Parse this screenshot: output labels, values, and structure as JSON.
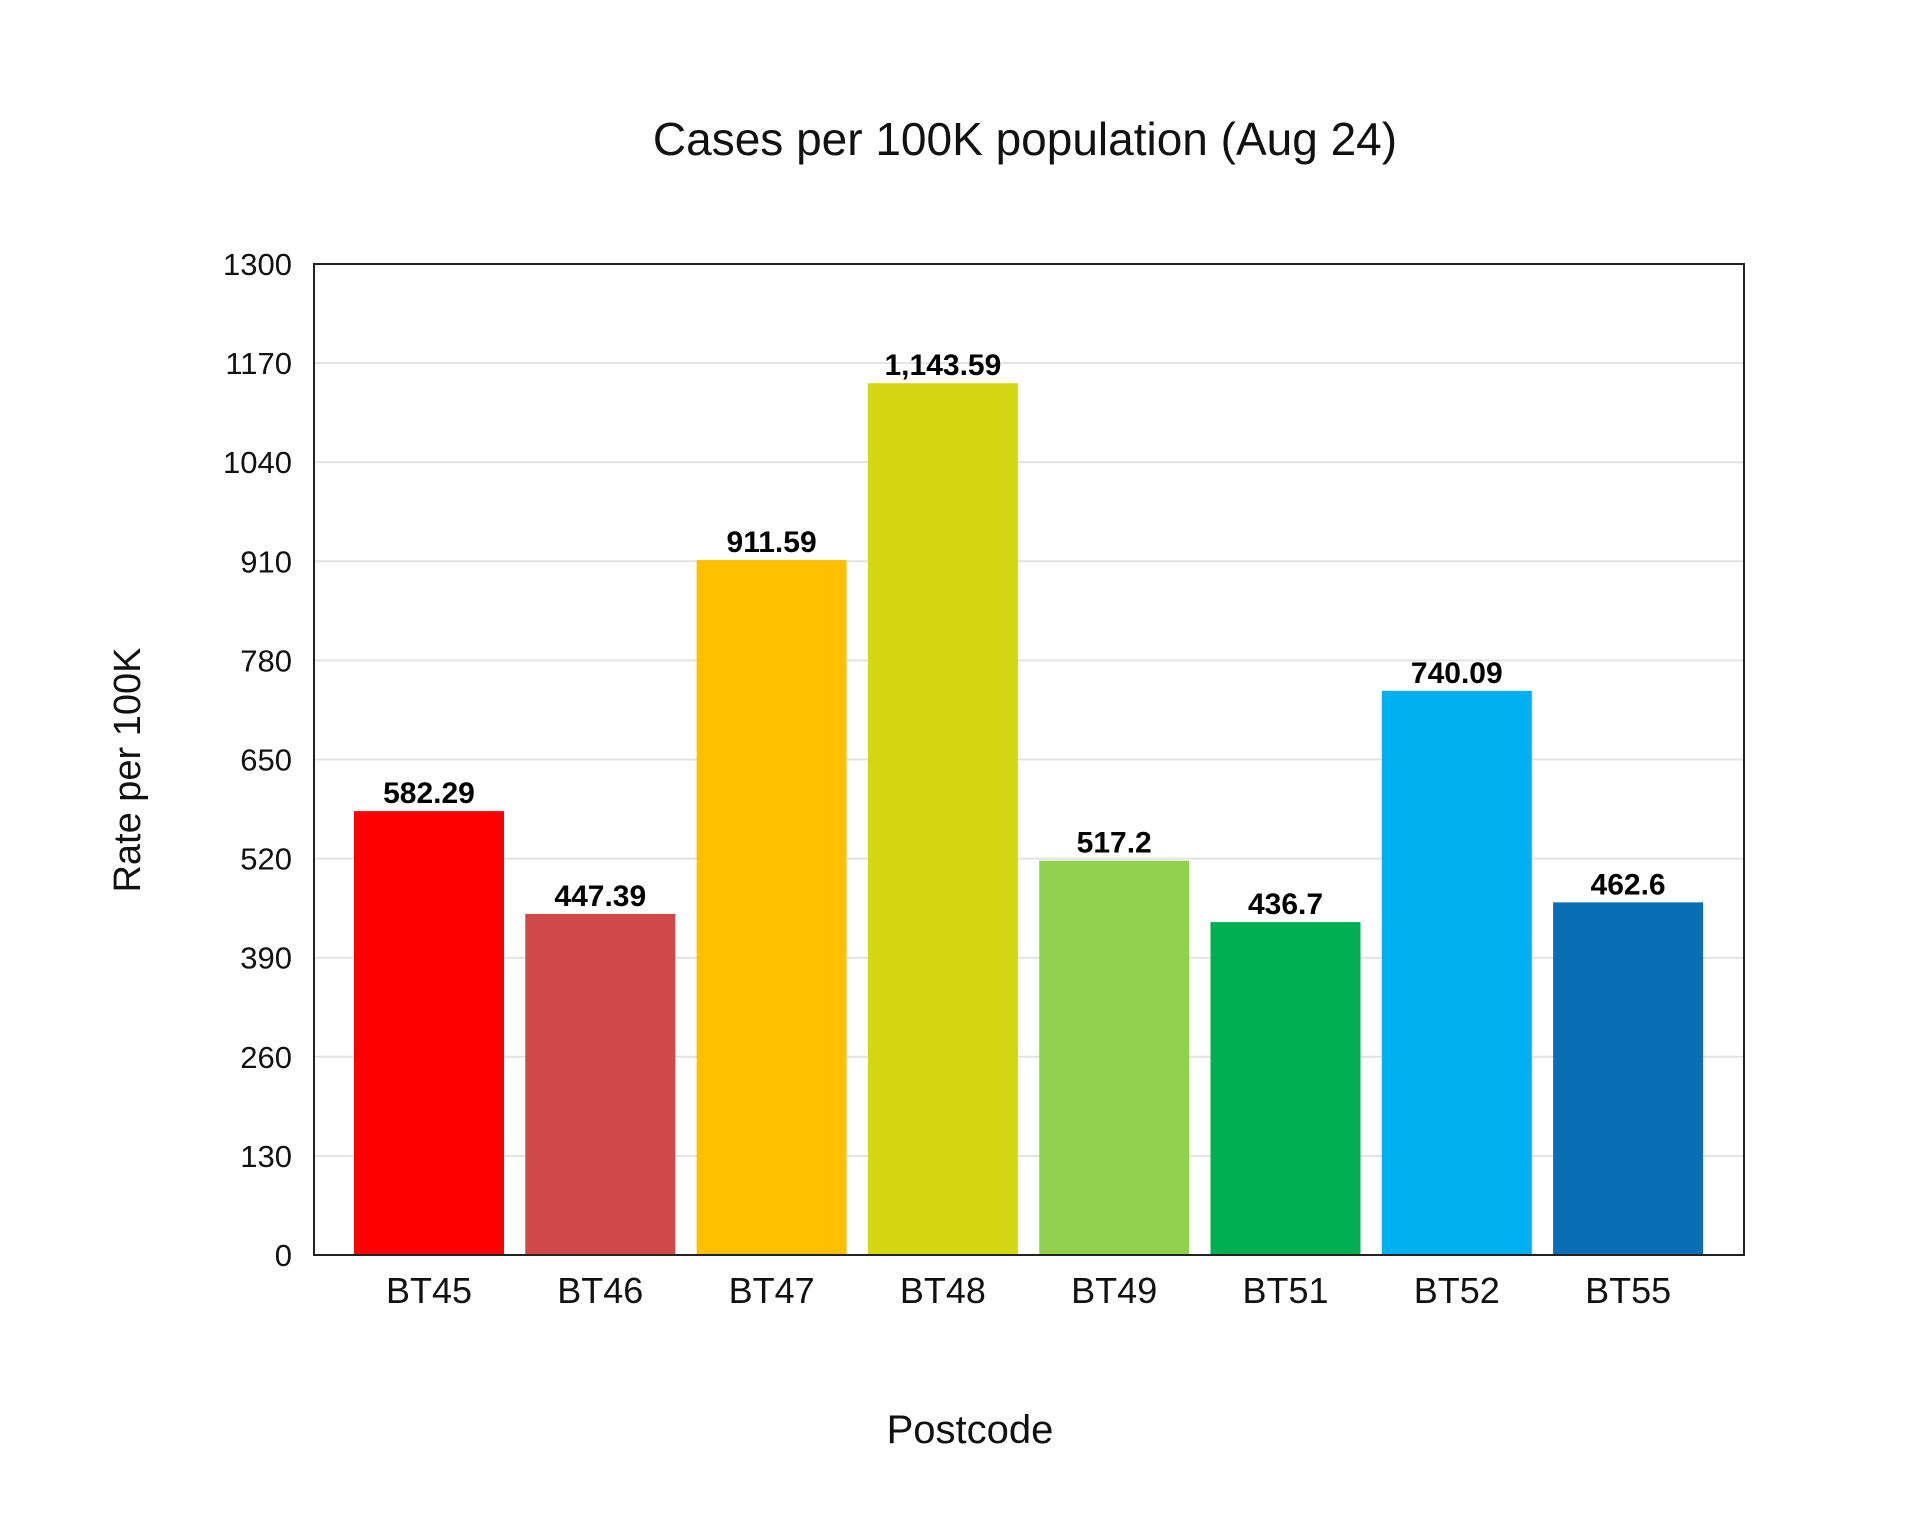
{
  "chart_data": {
    "type": "bar",
    "title": "Cases per 100K population (Aug 24)",
    "xlabel": "Postcode",
    "ylabel": "Rate per 100K",
    "categories": [
      "BT45",
      "BT46",
      "BT47",
      "BT48",
      "BT49",
      "BT51",
      "BT52",
      "BT55"
    ],
    "values": [
      582.29,
      447.39,
      911.59,
      1143.59,
      517.2,
      436.7,
      740.09,
      462.6
    ],
    "data_labels": [
      "582.29",
      "447.39",
      "911.59",
      "1,143.59",
      "517.2",
      "436.7",
      "740.09",
      "462.6"
    ],
    "colors": [
      "#ff0000",
      "#d04848",
      "#ffc000",
      "#d4d614",
      "#92d050",
      "#00b050",
      "#00b0f0",
      "#0a6eb4"
    ],
    "ylim": [
      0,
      1300
    ],
    "yticks": [
      0,
      130,
      260,
      390,
      520,
      650,
      780,
      910,
      1040,
      1170,
      1300
    ],
    "grid": true,
    "legend": "none"
  }
}
